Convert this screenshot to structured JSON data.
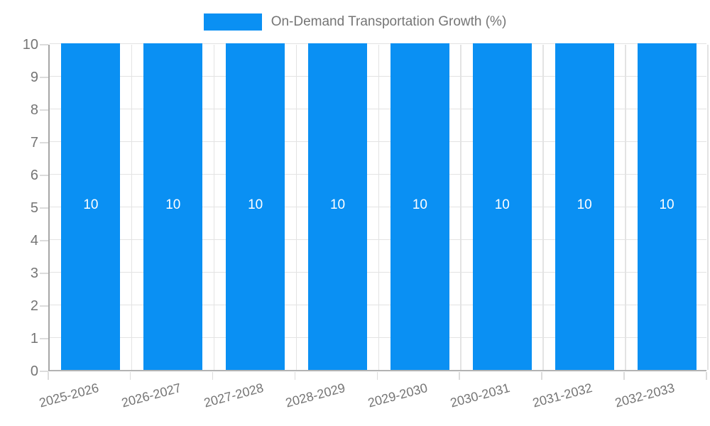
{
  "legend": {
    "label": "On-Demand Transportation Growth (%)"
  },
  "chart_data": {
    "type": "bar",
    "title": "On-Demand Transportation Growth (%)",
    "categories": [
      "2025-2026",
      "2026-2027",
      "2027-2028",
      "2028-2029",
      "2029-2030",
      "2030-2031",
      "2031-2032",
      "2032-2033"
    ],
    "series": [
      {
        "name": "On-Demand Transportation Growth (%)",
        "values": [
          10,
          10,
          10,
          10,
          10,
          10,
          10,
          10
        ]
      }
    ],
    "bar_value_labels": [
      "10",
      "10",
      "10",
      "10",
      "10",
      "10",
      "10",
      "10"
    ],
    "xlabel": "",
    "ylabel": "",
    "ylim": [
      0,
      10
    ],
    "yticks": [
      0,
      1,
      2,
      3,
      4,
      5,
      6,
      7,
      8,
      9,
      10
    ],
    "grid": true,
    "legend_position": "top-center",
    "x_label_rotation_deg": -15,
    "colors": {
      "bar": "#0a90f3",
      "grid": "#e3e3e3",
      "axis_y": "#a6a6a6",
      "axis_x": "#b3b3b3",
      "tick": "#dcdcdc",
      "text": "#757575",
      "value_label": "#ffffff",
      "background": "#ffffff"
    }
  }
}
